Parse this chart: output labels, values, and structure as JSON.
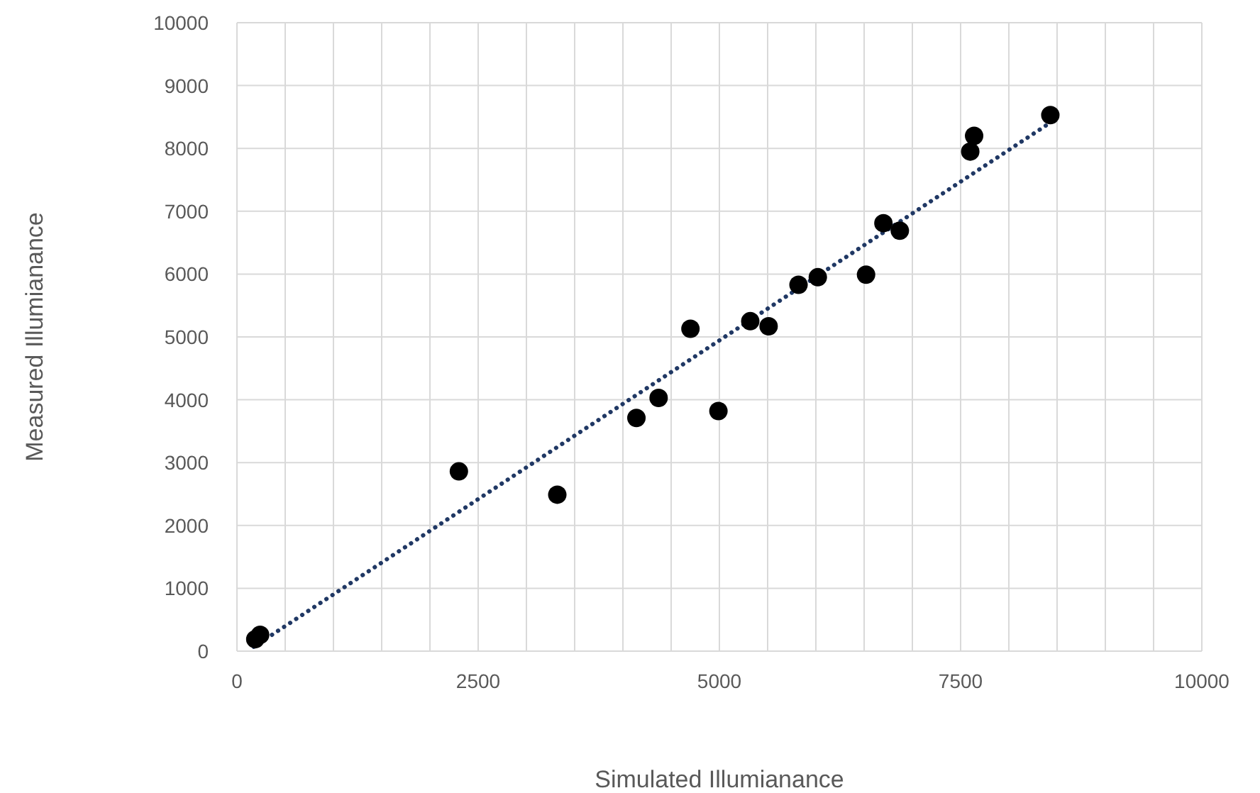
{
  "chart_data": {
    "type": "scatter",
    "xlabel": "Simulated Illumianance",
    "ylabel": "Measured Illumianance",
    "xlim": [
      0,
      10000
    ],
    "ylim": [
      0,
      10000
    ],
    "xticks": [
      0,
      {
        "value": 500,
        "label": null
      },
      {
        "value": 1000,
        "label": null
      },
      {
        "value": 1500,
        "label": null
      },
      {
        "value": 2000,
        "label": null
      },
      2500,
      {
        "value": 3000,
        "label": null
      },
      {
        "value": 3500,
        "label": null
      },
      {
        "value": 4000,
        "label": null
      },
      {
        "value": 4500,
        "label": null
      },
      5000,
      {
        "value": 5500,
        "label": null
      },
      {
        "value": 6000,
        "label": null
      },
      {
        "value": 6500,
        "label": null
      },
      {
        "value": 7000,
        "label": null
      },
      7500,
      {
        "value": 8000,
        "label": null
      },
      {
        "value": 8500,
        "label": null
      },
      {
        "value": 9000,
        "label": null
      },
      {
        "value": 9500,
        "label": null
      },
      10000
    ],
    "yticks": [
      0,
      1000,
      2000,
      3000,
      4000,
      5000,
      6000,
      7000,
      8000,
      9000,
      10000
    ],
    "grid": true,
    "marker": "circle",
    "series": [
      {
        "color": "#000000",
        "x": [
          190,
          240,
          2300,
          3320,
          4140,
          4370,
          4700,
          4990,
          5320,
          5510,
          5820,
          6020,
          6520,
          6700,
          6870,
          7600,
          7640,
          8430
        ],
        "values": [
          190,
          260,
          2860,
          2490,
          3710,
          4030,
          5130,
          3820,
          5250,
          5170,
          5830,
          5950,
          5990,
          6810,
          6690,
          7950,
          8200,
          8530
        ]
      },
      {
        "type": "line",
        "color": "#203864",
        "line_style": "dotted",
        "marker": "none",
        "x": [
          175,
          8420
        ],
        "values": [
          70,
          8400
        ]
      }
    ]
  }
}
